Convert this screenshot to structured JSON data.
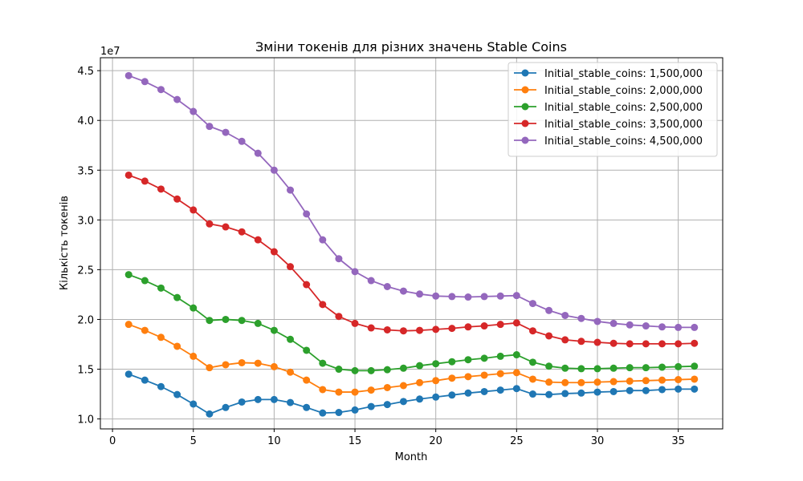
{
  "chart_data": {
    "type": "line",
    "title": "Зміни токенів для різних значень Stable Coins",
    "xlabel": "Month",
    "ylabel": "Кількість токенів",
    "y_offset_label": "1e7",
    "xlim": [
      -0.75,
      37.75
    ],
    "ylim": [
      9000000,
      46300000
    ],
    "x_ticks": [
      0,
      5,
      10,
      15,
      20,
      25,
      30,
      35
    ],
    "x_tick_labels": [
      "0",
      "5",
      "10",
      "15",
      "20",
      "25",
      "30",
      "35"
    ],
    "y_ticks": [
      10000000,
      15000000,
      20000000,
      25000000,
      30000000,
      35000000,
      40000000,
      45000000
    ],
    "y_tick_labels": [
      "1.0",
      "1.5",
      "2.0",
      "2.5",
      "3.0",
      "3.5",
      "4.0",
      "4.5"
    ],
    "grid": true,
    "legend_position": "top-right",
    "x": [
      1,
      2,
      3,
      4,
      5,
      6,
      7,
      8,
      9,
      10,
      11,
      12,
      13,
      14,
      15,
      16,
      17,
      18,
      19,
      20,
      21,
      22,
      23,
      24,
      25,
      26,
      27,
      28,
      29,
      30,
      31,
      32,
      33,
      34,
      35,
      36
    ],
    "series": [
      {
        "name": "Initial_stable_coins: 1,500,000",
        "color": "#1f77b4",
        "values": [
          14500000,
          13900000,
          13250000,
          12450000,
          11500000,
          10500000,
          11150000,
          11700000,
          11950000,
          11950000,
          11650000,
          11150000,
          10600000,
          10650000,
          10900000,
          11250000,
          11450000,
          11750000,
          12000000,
          12200000,
          12400000,
          12600000,
          12750000,
          12900000,
          13050000,
          12500000,
          12450000,
          12550000,
          12600000,
          12700000,
          12750000,
          12850000,
          12850000,
          12950000,
          13000000,
          13000000
        ]
      },
      {
        "name": "Initial_stable_coins: 2,000,000",
        "color": "#ff7f0e",
        "values": [
          19500000,
          18900000,
          18200000,
          17300000,
          16300000,
          15150000,
          15450000,
          15650000,
          15600000,
          15250000,
          14700000,
          13900000,
          12950000,
          12700000,
          12700000,
          12900000,
          13150000,
          13350000,
          13650000,
          13850000,
          14100000,
          14250000,
          14400000,
          14550000,
          14650000,
          14000000,
          13700000,
          13650000,
          13650000,
          13700000,
          13750000,
          13800000,
          13850000,
          13900000,
          13950000,
          14000000
        ]
      },
      {
        "name": "Initial_stable_coins: 2,500,000",
        "color": "#2ca02c",
        "values": [
          24500000,
          23900000,
          23150000,
          22200000,
          21150000,
          19900000,
          20000000,
          19900000,
          19600000,
          18900000,
          18000000,
          16900000,
          15600000,
          15000000,
          14850000,
          14850000,
          14950000,
          15100000,
          15350000,
          15550000,
          15750000,
          15950000,
          16100000,
          16300000,
          16450000,
          15700000,
          15300000,
          15100000,
          15050000,
          15050000,
          15100000,
          15150000,
          15150000,
          15200000,
          15250000,
          15300000
        ]
      },
      {
        "name": "Initial_stable_coins: 3,500,000",
        "color": "#d62728",
        "values": [
          34500000,
          33900000,
          33100000,
          32100000,
          31000000,
          29600000,
          29300000,
          28800000,
          28000000,
          26800000,
          25300000,
          23500000,
          21500000,
          20300000,
          19600000,
          19150000,
          18950000,
          18850000,
          18900000,
          19000000,
          19100000,
          19250000,
          19350000,
          19500000,
          19650000,
          18850000,
          18350000,
          17950000,
          17800000,
          17700000,
          17600000,
          17550000,
          17550000,
          17550000,
          17550000,
          17600000
        ]
      },
      {
        "name": "Initial_stable_coins: 4,500,000",
        "color": "#9467bd",
        "values": [
          44500000,
          43900000,
          43100000,
          42100000,
          40900000,
          39400000,
          38800000,
          37900000,
          36700000,
          35000000,
          33000000,
          30600000,
          28000000,
          26100000,
          24800000,
          23900000,
          23300000,
          22850000,
          22550000,
          22350000,
          22300000,
          22250000,
          22300000,
          22350000,
          22400000,
          21600000,
          20900000,
          20400000,
          20100000,
          19800000,
          19600000,
          19450000,
          19350000,
          19250000,
          19200000,
          19200000
        ]
      }
    ]
  }
}
